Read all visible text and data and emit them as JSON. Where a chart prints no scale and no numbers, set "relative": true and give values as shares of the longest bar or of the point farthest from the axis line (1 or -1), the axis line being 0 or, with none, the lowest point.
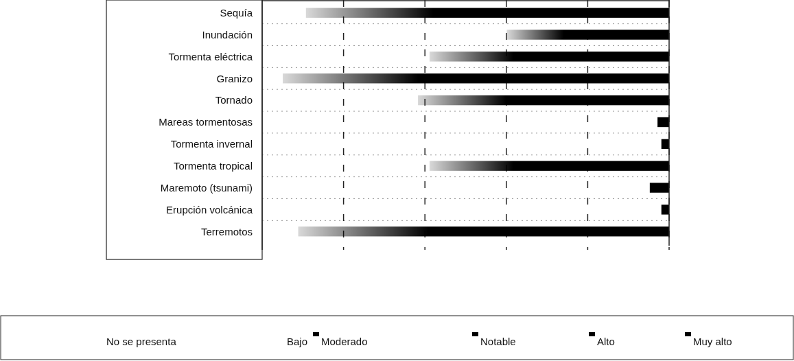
{
  "chart_data": {
    "type": "bar",
    "orientation": "horizontal",
    "relative": true,
    "grid": true,
    "categories": [
      "Sequía",
      "Inundación",
      "Tormenta eléctrica",
      "Granizo",
      "Tornado",
      "Mareas tormentosas",
      "Tormenta invernal",
      "Tormenta tropical",
      "Maremoto (tsunami)",
      "Erupción volcánica",
      "Terremotos"
    ],
    "values": [
      0.94,
      0.42,
      0.62,
      1,
      0.65,
      0.03,
      0.02,
      0.62,
      0.05,
      0.02,
      0.96
    ],
    "color": "#000000",
    "annotations": [
      "No se presenta",
      "Bajo",
      "Moderado",
      "Notable",
      "Alto",
      "Muy alto"
    ]
  }
}
